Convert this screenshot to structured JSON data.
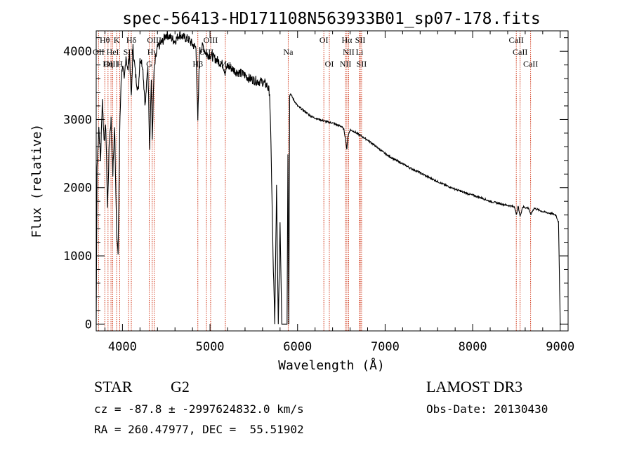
{
  "chart_data": {
    "type": "line",
    "title": "spec-56413-HD171108N563933B01_sp07-178.fits",
    "xlabel": "Wavelength (Å)",
    "ylabel": "Flux (relative)",
    "xlim": [
      3700,
      9090
    ],
    "ylim": [
      -100,
      4300
    ],
    "xticks": [
      4000,
      5000,
      6000,
      7000,
      8000,
      9000
    ],
    "yticks": [
      0,
      1000,
      2000,
      3000,
      4000
    ],
    "series": [
      {
        "name": "flux",
        "x": [
          3700,
          3710,
          3730,
          3750,
          3770,
          3790,
          3810,
          3830,
          3850,
          3870,
          3890,
          3910,
          3933,
          3950,
          3968,
          3985,
          4000,
          4020,
          4040,
          4060,
          4080,
          4101,
          4120,
          4150,
          4180,
          4200,
          4230,
          4260,
          4290,
          4310,
          4330,
          4340,
          4360,
          4380,
          4400,
          4430,
          4460,
          4500,
          4550,
          4600,
          4650,
          4700,
          4750,
          4800,
          4840,
          4861,
          4880,
          4920,
          4960,
          5000,
          5050,
          5100,
          5150,
          5172,
          5200,
          5250,
          5300,
          5350,
          5400,
          5450,
          5500,
          5550,
          5600,
          5650,
          5680,
          5700,
          5720,
          5740,
          5760,
          5780,
          5800,
          5820,
          5850,
          5880,
          5890,
          5900,
          5910,
          5920,
          5950,
          6000,
          6050,
          6100,
          6150,
          6200,
          6250,
          6300,
          6350,
          6400,
          6450,
          6500,
          6530,
          6550,
          6563,
          6575,
          6600,
          6650,
          6700,
          6800,
          6900,
          7000,
          7100,
          7200,
          7300,
          7400,
          7500,
          7600,
          7700,
          7800,
          7900,
          8000,
          8100,
          8200,
          8300,
          8400,
          8480,
          8498,
          8520,
          8542,
          8570,
          8600,
          8640,
          8662,
          8700,
          8800,
          8900,
          8950,
          8980,
          8990,
          9000,
          9010
        ],
        "values": [
          0,
          2300,
          2900,
          2400,
          3300,
          2700,
          2900,
          1700,
          2700,
          3000,
          2200,
          2900,
          1400,
          1000,
          2800,
          3600,
          3800,
          3550,
          3950,
          3700,
          4000,
          3300,
          4050,
          3650,
          3400,
          3900,
          3800,
          3200,
          3800,
          2600,
          3600,
          2700,
          3700,
          3900,
          4050,
          4100,
          4150,
          4250,
          4200,
          4150,
          4250,
          4200,
          4180,
          4100,
          4050,
          2950,
          4000,
          4080,
          3950,
          3950,
          3900,
          3850,
          3800,
          3700,
          3780,
          3750,
          3700,
          3680,
          3650,
          3600,
          3580,
          3560,
          3550,
          3500,
          3400,
          2400,
          1000,
          0,
          2000,
          0,
          1500,
          0,
          0,
          0,
          2500,
          0,
          3350,
          3380,
          3300,
          3200,
          3150,
          3100,
          3050,
          3020,
          3000,
          2980,
          2960,
          2950,
          2920,
          2900,
          2850,
          2700,
          2550,
          2750,
          2850,
          2820,
          2780,
          2700,
          2600,
          2500,
          2420,
          2350,
          2280,
          2220,
          2150,
          2090,
          2030,
          1980,
          1930,
          1890,
          1850,
          1800,
          1770,
          1740,
          1720,
          1600,
          1730,
          1580,
          1720,
          1710,
          1700,
          1600,
          1700,
          1650,
          1620,
          1600,
          1500,
          800,
          0,
          0
        ]
      }
    ],
    "lines": [
      {
        "label": "Hθ",
        "x": 3798,
        "row": 1
      },
      {
        "label": "K",
        "x": 3933,
        "row": 1
      },
      {
        "label": "Hδ",
        "x": 4101,
        "row": 1
      },
      {
        "label": "OIII",
        "x": 4363,
        "row": 1
      },
      {
        "label": "OIII",
        "x": 5007,
        "row": 1
      },
      {
        "label": "OI",
        "x": 6300,
        "row": 1
      },
      {
        "label": "Hα",
        "x": 6563,
        "row": 1
      },
      {
        "label": "SII",
        "x": 6716,
        "row": 1
      },
      {
        "label": "CaII",
        "x": 8498,
        "row": 1
      },
      {
        "label": "OII",
        "x": 3727,
        "row": 2
      },
      {
        "label": "HeI",
        "x": 3889,
        "row": 2
      },
      {
        "label": "SII",
        "x": 4069,
        "row": 2
      },
      {
        "label": "Hγ",
        "x": 4340,
        "row": 2
      },
      {
        "label": "OIII",
        "x": 4959,
        "row": 2
      },
      {
        "label": "Na",
        "x": 5893,
        "row": 2
      },
      {
        "label": "NII",
        "x": 6583,
        "row": 2
      },
      {
        "label": "Li",
        "x": 6708,
        "row": 2
      },
      {
        "label": "CaII",
        "x": 8542,
        "row": 2
      },
      {
        "label": "OIII",
        "x": 3869,
        "row": 3
      },
      {
        "label": "Hη",
        "x": 3835,
        "row": 3
      },
      {
        "label": "H",
        "x": 3968,
        "row": 3
      },
      {
        "label": "G",
        "x": 4305,
        "row": 3
      },
      {
        "label": "Hβ",
        "x": 4861,
        "row": 3
      },
      {
        "label": "Mg",
        "x": 5175,
        "row": 3
      },
      {
        "label": "OI",
        "x": 6363,
        "row": 3
      },
      {
        "label": "NII",
        "x": 6548,
        "row": 3
      },
      {
        "label": "SII",
        "x": 6731,
        "row": 3
      },
      {
        "label": "CaII",
        "x": 8662,
        "row": 3
      }
    ]
  },
  "info": {
    "object_class": "STAR",
    "subclass": "G2",
    "survey": "LAMOST DR3",
    "redshift": "cz = -87.8 ± -2997624832.0 km/s",
    "obs_date": "Obs-Date: 20130430",
    "coords": "RA = 260.47977, DEC =  55.51902"
  },
  "colors": {
    "line_marker": "#cc2200",
    "spectrum": "#000000",
    "axes": "#000000"
  }
}
